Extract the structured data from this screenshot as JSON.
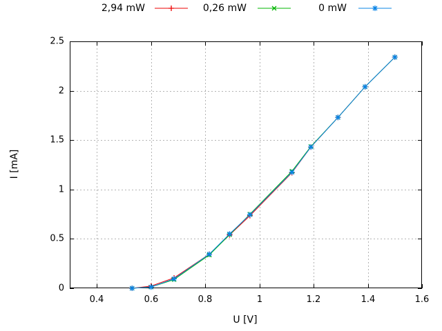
{
  "chart_data": {
    "type": "line",
    "title": "",
    "xlabel": "U [V]",
    "ylabel": "I [mA]",
    "xlim": [
      0.3,
      1.6
    ],
    "ylim": [
      0,
      2.5
    ],
    "grid": true,
    "legend_position": "top-outside-horizontal",
    "x_ticks": {
      "values": [
        0.4,
        0.6,
        0.8,
        1.0,
        1.2,
        1.4,
        1.6
      ],
      "labels": [
        "0.4",
        "0.6",
        "0.8",
        "1",
        "1.2",
        "1.4",
        "1.6"
      ]
    },
    "y_ticks": {
      "values": [
        0,
        0.5,
        1.0,
        1.5,
        2.0,
        2.5
      ],
      "labels": [
        "0",
        "0.5",
        "1",
        "1.5",
        "2",
        "2.5"
      ]
    },
    "colors": {
      "border": "#000000",
      "grid": "#b3b3b3",
      "text": "#000000"
    },
    "series": [
      {
        "name": "2,94 mW",
        "color": "#ee0000",
        "marker": "plus",
        "points": [
          [
            0.53,
            0.0
          ],
          [
            0.6,
            0.022
          ],
          [
            0.685,
            0.105
          ],
          [
            0.815,
            0.345
          ],
          [
            0.89,
            0.54
          ],
          [
            0.965,
            0.735
          ],
          [
            1.12,
            1.17
          ],
          [
            1.19,
            1.43
          ],
          [
            1.29,
            1.73
          ],
          [
            1.39,
            2.04
          ],
          [
            1.5,
            2.34
          ]
        ]
      },
      {
        "name": "0,26 mW",
        "color": "#00b400",
        "marker": "cross",
        "points": [
          [
            0.53,
            0.0
          ],
          [
            0.6,
            0.012
          ],
          [
            0.685,
            0.088
          ],
          [
            0.815,
            0.337
          ],
          [
            0.89,
            0.543
          ],
          [
            0.965,
            0.75
          ],
          [
            1.12,
            1.185
          ],
          [
            1.19,
            1.435
          ],
          [
            1.29,
            1.73
          ],
          [
            1.39,
            2.04
          ],
          [
            1.5,
            2.34
          ]
        ]
      },
      {
        "name": "0 mW",
        "color": "#0a84e6",
        "marker": "asterisk",
        "points": [
          [
            0.53,
            0.0
          ],
          [
            0.6,
            0.012
          ],
          [
            0.685,
            0.095
          ],
          [
            0.815,
            0.345
          ],
          [
            0.89,
            0.55
          ],
          [
            0.965,
            0.745
          ],
          [
            1.12,
            1.175
          ],
          [
            1.19,
            1.43
          ],
          [
            1.29,
            1.73
          ],
          [
            1.39,
            2.04
          ],
          [
            1.5,
            2.34
          ]
        ]
      }
    ]
  }
}
